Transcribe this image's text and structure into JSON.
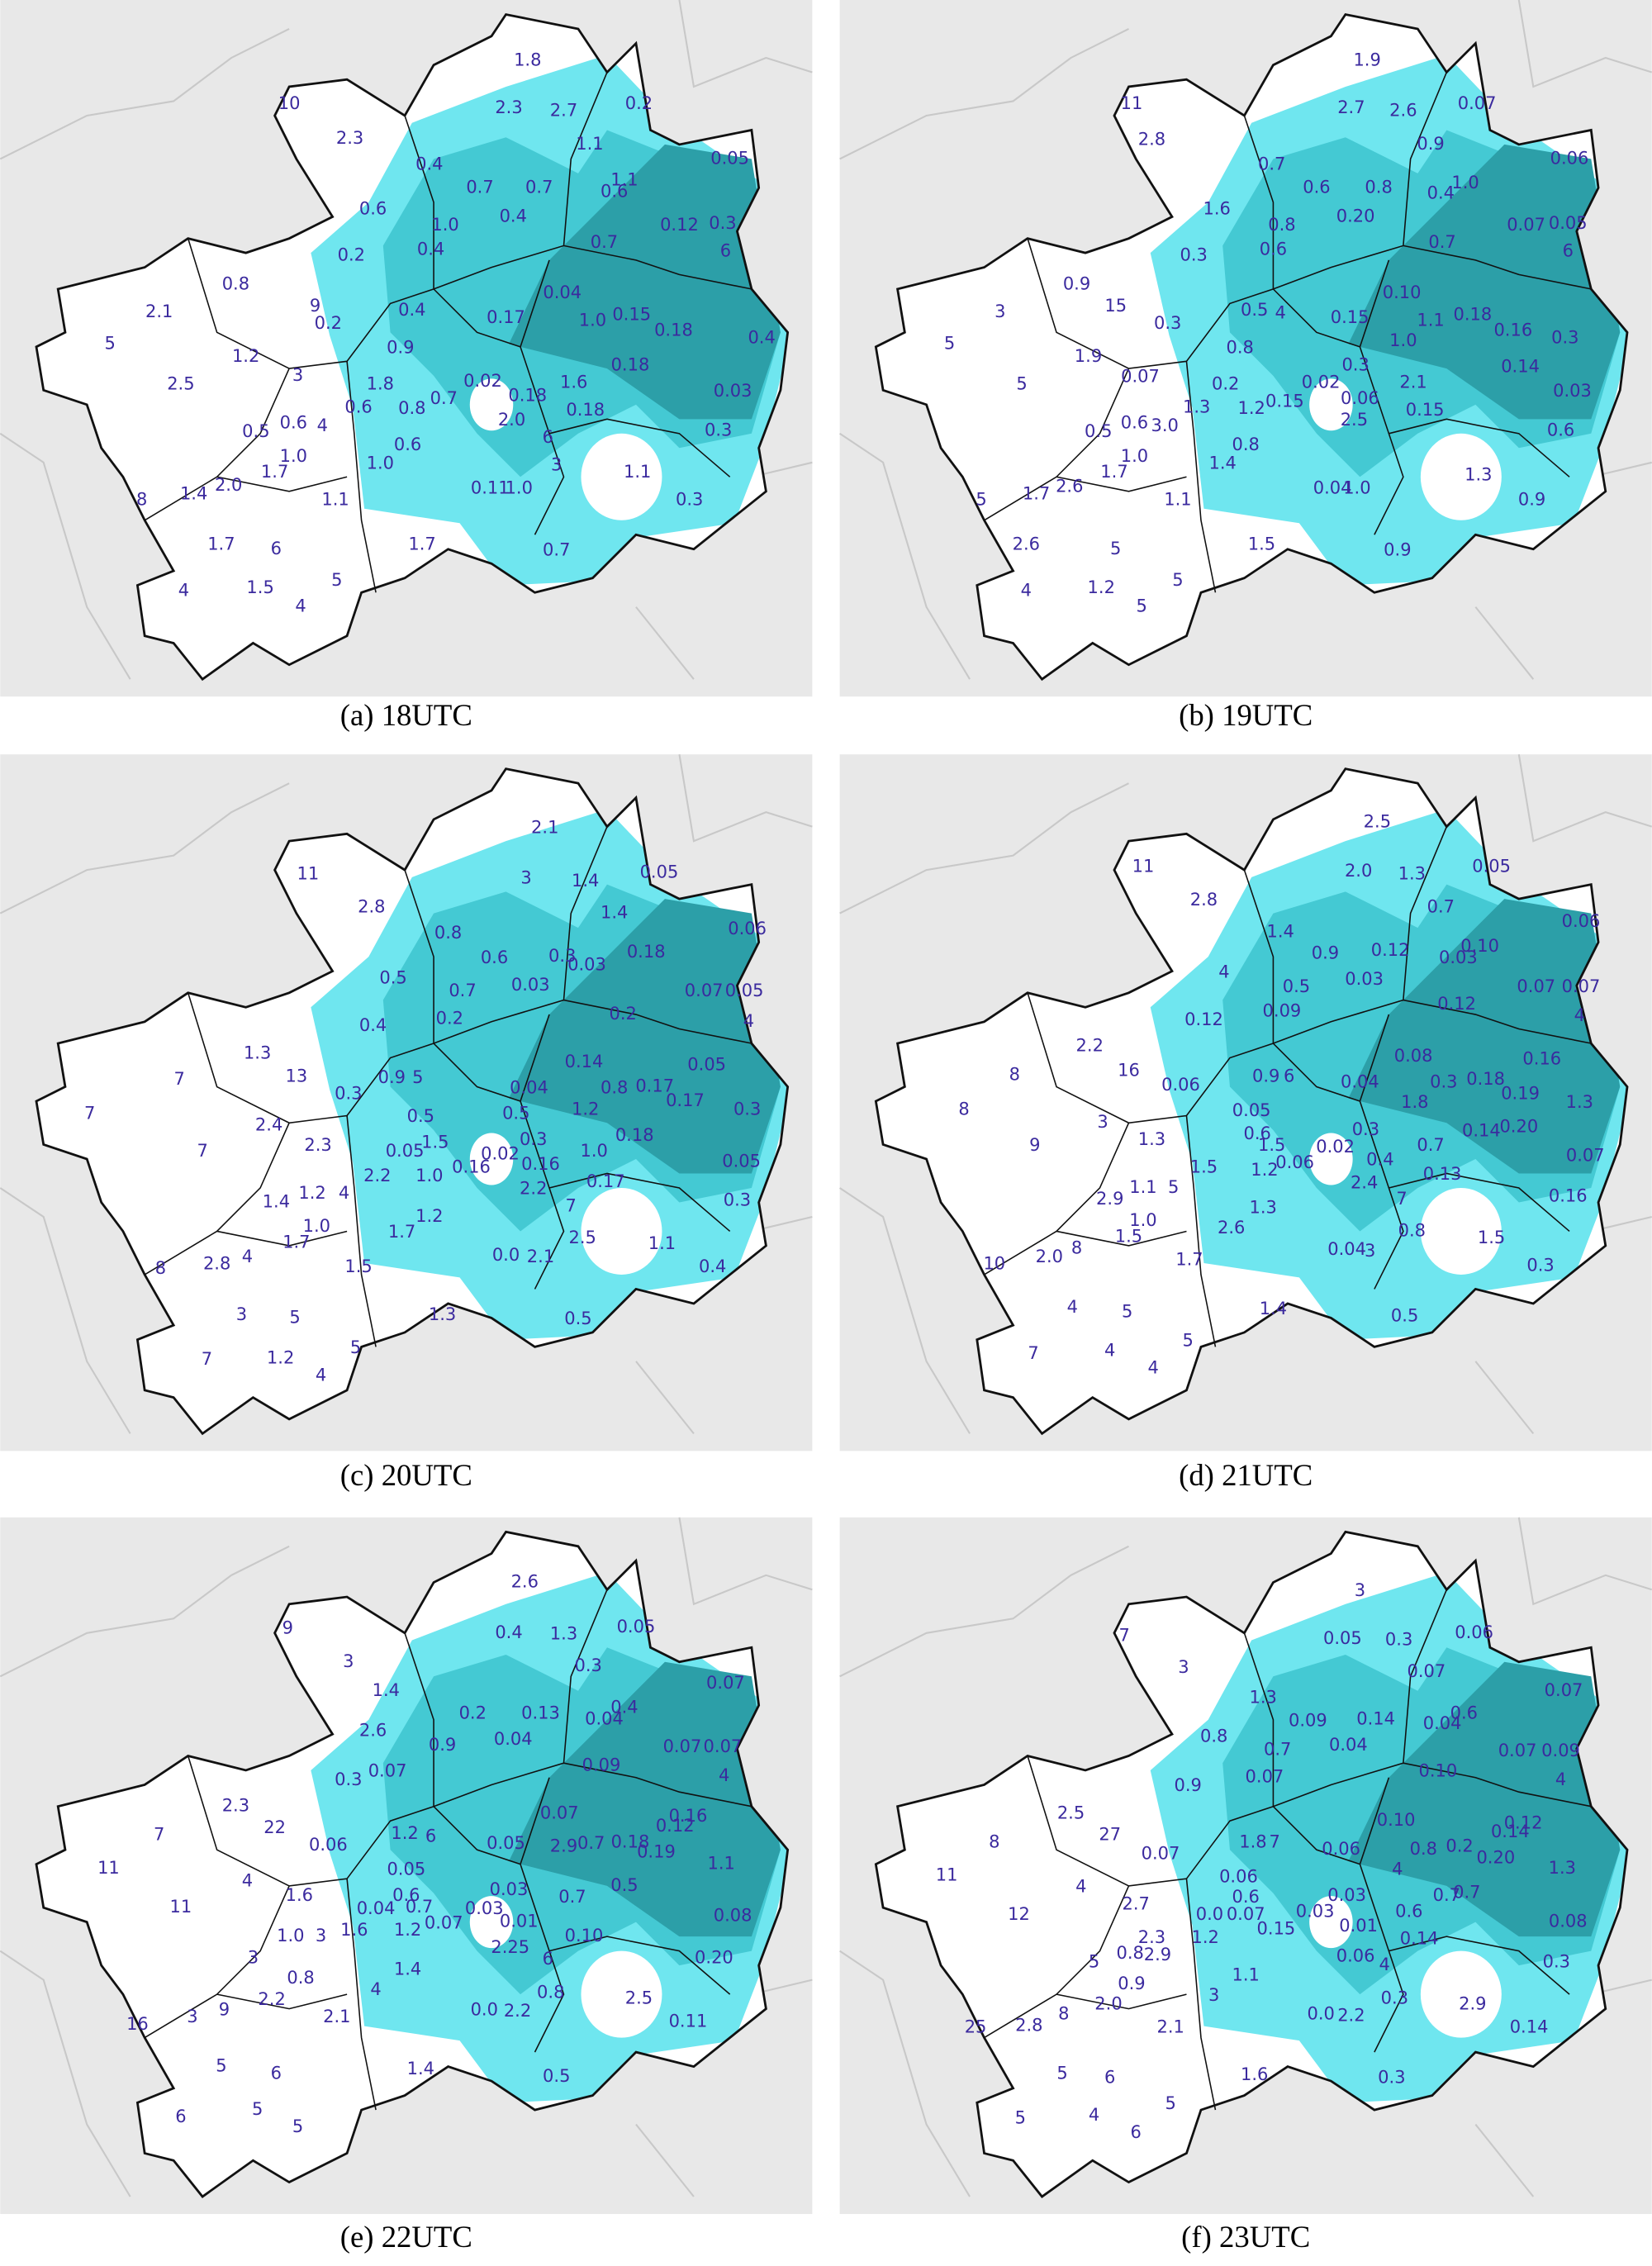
{
  "panels": [
    {
      "caption": "(a) 18UTC",
      "labels": [
        "1.8",
        "10",
        "2.3",
        "2.7",
        "0.2",
        "2.3",
        "1.1",
        "0.05",
        "0.4",
        "0.7",
        "0.7",
        "0.6",
        "1.1",
        "0.6",
        "0.4",
        "1.0",
        "0.12",
        "0.3",
        "0.4",
        "0.7",
        "0.2",
        "6",
        "0.8",
        "0.04",
        "2.1",
        "9",
        "0.4",
        "0.17",
        "1.0",
        "0.15",
        "0.18",
        "0.4",
        "0.2",
        "5",
        "1.2",
        "0.9",
        "3",
        "1.8",
        "0.02",
        "1.6",
        "0.18",
        "2.5",
        "0.7",
        "0.18",
        "0.03",
        "0.6",
        "0.8",
        "0.18",
        "0.5",
        "0.6",
        "4",
        "2.0",
        "6",
        "0.3",
        "1.0",
        "0.6",
        "1.7",
        "1.0",
        "3",
        "1.4",
        "2.0",
        "1.1",
        "0.11",
        "1.0",
        "1.1",
        "0.3",
        "8",
        "1.7",
        "6",
        "1.7",
        "0.7",
        "4",
        "1.5",
        "5",
        "4"
      ]
    },
    {
      "caption": "(b) 19UTC",
      "labels": [
        "1.9",
        "11",
        "2.7",
        "2.6",
        "0.07",
        "2.8",
        "0.9",
        "0.06",
        "0.7",
        "0.6",
        "0.8",
        "1.0",
        "0.4",
        "1.6",
        "0.20",
        "0.8",
        "0.07",
        "0.05",
        "0.6",
        "0.7",
        "0.3",
        "6",
        "0.9",
        "0.10",
        "3",
        "15",
        "0.5",
        "4",
        "0.15",
        "1.1",
        "0.18",
        "0.16",
        "0.3",
        "0.3",
        "5",
        "1.9",
        "0.8",
        "1.0",
        "0.14",
        "2.1",
        "0.02",
        "0.3",
        "0.07",
        "5",
        "0.2",
        "0.15",
        "0.06",
        "0.03",
        "1.3",
        "1.2",
        "0.15",
        "0.5",
        "0.6",
        "3.0",
        "2.5",
        "0.6",
        "1.0",
        "0.8",
        "1.7",
        "1.4",
        "1.3",
        "1.7",
        "2.6",
        "1.1",
        "0.04",
        "1.0",
        "0.9",
        "5",
        "2.6",
        "5",
        "1.5",
        "0.9",
        "4",
        "1.2",
        "5",
        "5"
      ]
    },
    {
      "caption": "(c) 20UTC",
      "labels": [
        "2.1",
        "11",
        "3",
        "1.4",
        "0.05",
        "2.8",
        "1.4",
        "0.06",
        "0.8",
        "0.6",
        "0.3",
        "0.03",
        "0.18",
        "0.5",
        "0.7",
        "0.03",
        "0.07",
        "0.05",
        "0.4",
        "0.2",
        "0.2",
        "4",
        "1.3",
        "0.14",
        "0.8",
        "0.17",
        "0.05",
        "7",
        "13",
        "0.9",
        "5",
        "0.04",
        "0.3",
        "7",
        "0.5",
        "0.5",
        "1.2",
        "0.17",
        "0.3",
        "2.4",
        "1.5",
        "0.3",
        "0.18",
        "2.3",
        "7",
        "0.02",
        "0.16",
        "1.0",
        "0.05",
        "2.2",
        "1.0",
        "0.16",
        "0.05",
        "1.2",
        "4",
        "1.4",
        "0.17",
        "2.2",
        "7",
        "1.2",
        "0.3",
        "1.0",
        "1.7",
        "1.7",
        "2.5",
        "8",
        "2.8",
        "4",
        "1.5",
        "0.0",
        "2.1",
        "1.1",
        "0.4",
        "3",
        "5",
        "1.3",
        "0.5",
        "7",
        "1.2",
        "5",
        "4"
      ]
    },
    {
      "caption": "(d) 21UTC",
      "labels": [
        "2.5",
        "11",
        "2.0",
        "1.3",
        "0.05",
        "2.8",
        "0.7",
        "0.06",
        "1.4",
        "0.9",
        "0.12",
        "0.10",
        "0.03",
        "4",
        "0.5",
        "0.03",
        "0.07",
        "0.07",
        "0.12",
        "0.09",
        "0.12",
        "4",
        "2.2",
        "0.08",
        "0.3",
        "0.18",
        "0.16",
        "8",
        "16",
        "0.9",
        "6",
        "0.04",
        "0.06",
        "8",
        "1.8",
        "0.19",
        "1.3",
        "0.05",
        "3",
        "0.3",
        "0.20",
        "0.7",
        "0.14",
        "1.3",
        "0.6",
        "1.5",
        "0.02",
        "0.06",
        "0.4",
        "1.2",
        "0.07",
        "9",
        "1.5",
        "0.13",
        "2.4",
        "1.1",
        "5",
        "7",
        "0.16",
        "2.9",
        "1.3",
        "1.0",
        "2.6",
        "0.8",
        "1.5",
        "1.5",
        "0.04",
        "3",
        "10",
        "2.0",
        "8",
        "1.7",
        "0.3",
        "4",
        "5",
        "1.4",
        "0.5",
        "7",
        "4",
        "5",
        "4"
      ]
    },
    {
      "caption": "(e) 22UTC",
      "labels": [
        "2.6",
        "9",
        "0.4",
        "1.3",
        "0.05",
        "3",
        "0.3",
        "0.07",
        "1.4",
        "0.2",
        "0.13",
        "0.4",
        "0.04",
        "2.6",
        "0.9",
        "0.04",
        "0.07",
        "0.07",
        "0.07",
        "0.3",
        "0.09",
        "4",
        "2.3",
        "22",
        "0.07",
        "0.16",
        "0.12",
        "7",
        "0.06",
        "1.2",
        "6",
        "0.05",
        "2.9",
        "0.7",
        "0.18",
        "0.19",
        "1.1",
        "11",
        "4",
        "0.05",
        "0.5",
        "1.6",
        "0.6",
        "0.03",
        "0.7",
        "11",
        "0.04",
        "0.7",
        "0.07",
        "0.03",
        "0.01",
        "0.08",
        "1.0",
        "3",
        "1.6",
        "1.2",
        "0.10",
        "3",
        "2.25",
        "6",
        "0.20",
        "0.8",
        "1.4",
        "2.2",
        "4",
        "0.8",
        "2.5",
        "9",
        "2.1",
        "0.0",
        "2.2",
        "0.11",
        "16",
        "3",
        "5",
        "6",
        "1.4",
        "0.5",
        "6",
        "5",
        "5"
      ]
    },
    {
      "caption": "(f) 23UTC",
      "labels": [
        "3",
        "7",
        "0.05",
        "0.3",
        "0.06",
        "3",
        "0.07",
        "0.07",
        "1.3",
        "0.09",
        "0.14",
        "0.04",
        "0.6",
        "0.8",
        "0.7",
        "0.04",
        "0.07",
        "0.09",
        "0.9",
        "0.07",
        "0.10",
        "4",
        "2.5",
        "27",
        "0.10",
        "0.12",
        "0.14",
        "8",
        "0.07",
        "1.8",
        "7",
        "0.06",
        "0.8",
        "0.2",
        "0.20",
        "1.3",
        "11",
        "4",
        "0.06",
        "4",
        "0.03",
        "0.7",
        "0.7",
        "12",
        "2.7",
        "0.6",
        "0.0",
        "0.07",
        "0.03",
        "0.01",
        "0.6",
        "0.08",
        "2.3",
        "1.2",
        "0.15",
        "0.14",
        "0.06",
        "4",
        "0.3",
        "5",
        "0.8",
        "2.9",
        "1.1",
        "0.9",
        "2.0",
        "3",
        "0.3",
        "2.9",
        "2.8",
        "8",
        "2.1",
        "0.0",
        "2.2",
        "0.14",
        "25",
        "5",
        "6",
        "1.6",
        "0.3",
        "5",
        "4",
        "6",
        "5"
      ]
    }
  ]
}
